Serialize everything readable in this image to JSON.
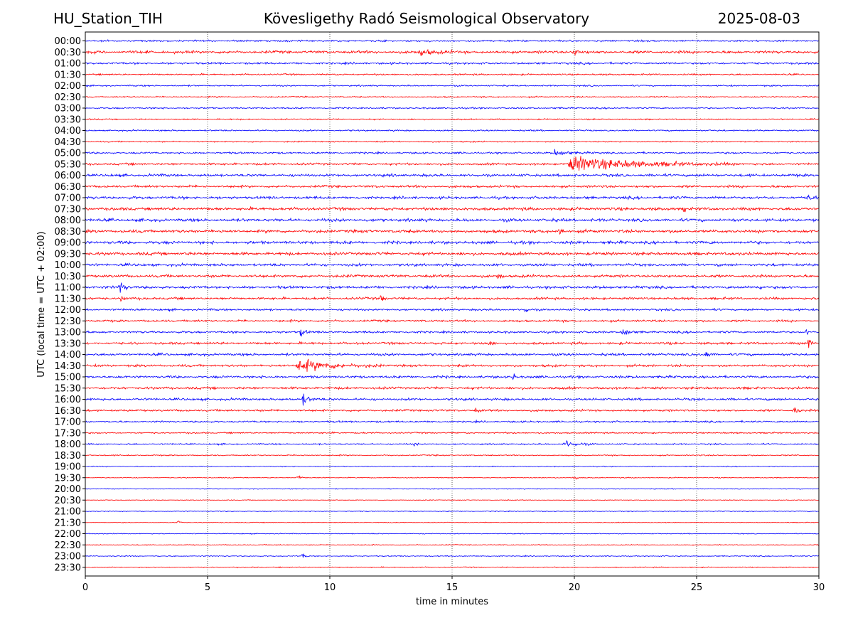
{
  "header": {
    "station": "HU_Station_TIH",
    "observatory": "Kövesligethy Radó Seismological Observatory",
    "date": "2025-08-03"
  },
  "colors": {
    "even_trace": "#0000ff",
    "odd_trace": "#ff0000",
    "grid": "#000000"
  },
  "chart_data": {
    "type": "line",
    "subtype": "helicorder",
    "xlabel": "time in minutes",
    "ylabel": "UTC (local time = UTC + 02:00)",
    "xlim": [
      0,
      30
    ],
    "xticks": [
      0,
      5,
      10,
      15,
      20,
      25,
      30
    ],
    "grid": "vertical dotted at x ticks",
    "rows": [
      "00:00",
      "00:30",
      "01:00",
      "01:30",
      "02:00",
      "02:30",
      "03:00",
      "03:30",
      "04:00",
      "04:30",
      "05:00",
      "05:30",
      "06:00",
      "06:30",
      "07:00",
      "07:30",
      "08:00",
      "08:30",
      "09:00",
      "09:30",
      "10:00",
      "10:30",
      "11:00",
      "11:30",
      "12:00",
      "12:30",
      "13:00",
      "13:30",
      "14:00",
      "14:30",
      "15:00",
      "15:30",
      "16:00",
      "16:30",
      "17:00",
      "17:30",
      "18:00",
      "18:30",
      "19:00",
      "19:30",
      "20:00",
      "20:30",
      "21:00",
      "21:30",
      "22:00",
      "22:30",
      "23:00",
      "23:30"
    ],
    "noise_level": [
      0.6,
      0.9,
      0.7,
      0.55,
      0.5,
      0.45,
      0.5,
      0.45,
      0.5,
      0.45,
      0.6,
      0.7,
      0.9,
      0.8,
      0.9,
      1.0,
      1.0,
      1.0,
      1.0,
      1.0,
      0.9,
      0.9,
      0.9,
      0.8,
      0.7,
      0.7,
      0.7,
      0.8,
      0.8,
      0.8,
      0.8,
      0.8,
      0.8,
      0.7,
      0.6,
      0.5,
      0.5,
      0.4,
      0.3,
      0.3,
      0.25,
      0.25,
      0.25,
      0.25,
      0.3,
      0.3,
      0.35,
      0.35
    ],
    "events": [
      {
        "row": 1,
        "minute": 13.7,
        "amp": 1.3,
        "duration": 1.5
      },
      {
        "row": 1,
        "minute": 20.0,
        "amp": 1.1,
        "duration": 0.6
      },
      {
        "row": 10,
        "minute": 19.2,
        "amp": 1.2,
        "duration": 1.5
      },
      {
        "row": 11,
        "minute": 19.8,
        "amp": 3.2,
        "duration": 7.0
      },
      {
        "row": 14,
        "minute": 29.6,
        "amp": 1.5,
        "duration": 0.4
      },
      {
        "row": 15,
        "minute": 24.5,
        "amp": 2.0,
        "duration": 0.2
      },
      {
        "row": 17,
        "minute": 19.4,
        "amp": 2.2,
        "duration": 0.3
      },
      {
        "row": 21,
        "minute": 16.9,
        "amp": 1.8,
        "duration": 0.3
      },
      {
        "row": 22,
        "minute": 1.4,
        "amp": 3.0,
        "duration": 0.5
      },
      {
        "row": 22,
        "minute": 27.6,
        "amp": 1.8,
        "duration": 0.2
      },
      {
        "row": 23,
        "minute": 1.5,
        "amp": 1.5,
        "duration": 0.3
      },
      {
        "row": 23,
        "minute": 12.1,
        "amp": 2.0,
        "duration": 0.3
      },
      {
        "row": 24,
        "minute": 18.0,
        "amp": 1.8,
        "duration": 0.2
      },
      {
        "row": 26,
        "minute": 8.8,
        "amp": 2.3,
        "duration": 0.4
      },
      {
        "row": 26,
        "minute": 22.0,
        "amp": 2.3,
        "duration": 0.5
      },
      {
        "row": 26,
        "minute": 29.5,
        "amp": 1.2,
        "duration": 0.2
      },
      {
        "row": 27,
        "minute": 16.5,
        "amp": 1.5,
        "duration": 0.3
      },
      {
        "row": 27,
        "minute": 29.6,
        "amp": 2.3,
        "duration": 0.3
      },
      {
        "row": 28,
        "minute": 25.4,
        "amp": 1.8,
        "duration": 0.3
      },
      {
        "row": 29,
        "minute": 8.7,
        "amp": 2.6,
        "duration": 3.5
      },
      {
        "row": 30,
        "minute": 17.5,
        "amp": 1.8,
        "duration": 0.2
      },
      {
        "row": 32,
        "minute": 8.9,
        "amp": 2.3,
        "duration": 0.6
      },
      {
        "row": 33,
        "minute": 16.0,
        "amp": 1.3,
        "duration": 0.2
      },
      {
        "row": 33,
        "minute": 29.0,
        "amp": 2.3,
        "duration": 0.3
      },
      {
        "row": 36,
        "minute": 13.5,
        "amp": 1.0,
        "duration": 0.2
      },
      {
        "row": 36,
        "minute": 19.6,
        "amp": 1.6,
        "duration": 1.2
      },
      {
        "row": 39,
        "minute": 8.7,
        "amp": 1.5,
        "duration": 0.3
      },
      {
        "row": 39,
        "minute": 20.0,
        "amp": 1.2,
        "duration": 0.3
      },
      {
        "row": 43,
        "minute": 3.8,
        "amp": 1.3,
        "duration": 0.2
      },
      {
        "row": 46,
        "minute": 8.9,
        "amp": 1.2,
        "duration": 0.3
      }
    ]
  }
}
